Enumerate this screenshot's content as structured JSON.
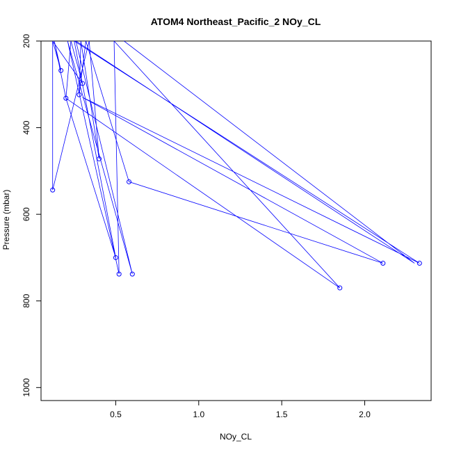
{
  "chart_data": {
    "type": "line",
    "title": "ATOM4 Northeast_Pacific_2 NOy_CL",
    "xlabel": "NOy_CL",
    "ylabel": "Pressure (mbar)",
    "xlim": [
      0.05,
      2.4
    ],
    "ylim": [
      200,
      1030
    ],
    "y_reversed": true,
    "grid": false,
    "color": "#0000ff",
    "x_ticks": [
      {
        "value": 0.5,
        "label": "0.5"
      },
      {
        "value": 1.0,
        "label": "1.0"
      },
      {
        "value": 1.5,
        "label": "1.5"
      },
      {
        "value": 2.0,
        "label": "2.0"
      }
    ],
    "y_ticks": [
      {
        "value": 200,
        "label": "200"
      },
      {
        "value": 400,
        "label": "400"
      },
      {
        "value": 600,
        "label": "600"
      },
      {
        "value": 800,
        "label": "800"
      },
      {
        "value": 1000,
        "label": "1000"
      }
    ],
    "points": [
      {
        "x": 0.12,
        "y": 200
      },
      {
        "x": 0.17,
        "y": 268
      },
      {
        "x": 0.13,
        "y": 200
      },
      {
        "x": 0.2,
        "y": 332
      },
      {
        "x": 0.23,
        "y": 200
      },
      {
        "x": 0.3,
        "y": 298
      },
      {
        "x": 0.12,
        "y": 200
      },
      {
        "x": 0.12,
        "y": 544
      },
      {
        "x": 0.34,
        "y": 200
      },
      {
        "x": 0.4,
        "y": 472
      },
      {
        "x": 0.29,
        "y": 200
      },
      {
        "x": 0.28,
        "y": 324
      },
      {
        "x": 0.32,
        "y": 200
      },
      {
        "x": 0.58,
        "y": 525
      },
      {
        "x": 2.11,
        "y": 713
      },
      {
        "x": 0.3,
        "y": 330
      },
      {
        "x": 2.33,
        "y": 713
      },
      {
        "x": 0.25,
        "y": 200
      },
      {
        "x": 0.5,
        "y": 700
      },
      {
        "x": 0.2,
        "y": 332
      },
      {
        "x": 1.85,
        "y": 770
      },
      {
        "x": 0.49,
        "y": 200
      },
      {
        "x": 0.52,
        "y": 738
      },
      {
        "x": 0.21,
        "y": 200
      },
      {
        "x": 0.6,
        "y": 738
      },
      {
        "x": 0.26,
        "y": 200
      },
      {
        "x": 2.3,
        "y": 713
      },
      {
        "x": 0.55,
        "y": 200
      }
    ],
    "markers": [
      {
        "x": 0.17,
        "y": 268
      },
      {
        "x": 0.2,
        "y": 332
      },
      {
        "x": 0.3,
        "y": 298
      },
      {
        "x": 0.12,
        "y": 544
      },
      {
        "x": 0.4,
        "y": 472
      },
      {
        "x": 0.28,
        "y": 324
      },
      {
        "x": 0.58,
        "y": 525
      },
      {
        "x": 2.11,
        "y": 713
      },
      {
        "x": 2.33,
        "y": 713
      },
      {
        "x": 0.5,
        "y": 700
      },
      {
        "x": 1.85,
        "y": 770
      },
      {
        "x": 0.52,
        "y": 738
      },
      {
        "x": 0.6,
        "y": 738
      }
    ]
  }
}
